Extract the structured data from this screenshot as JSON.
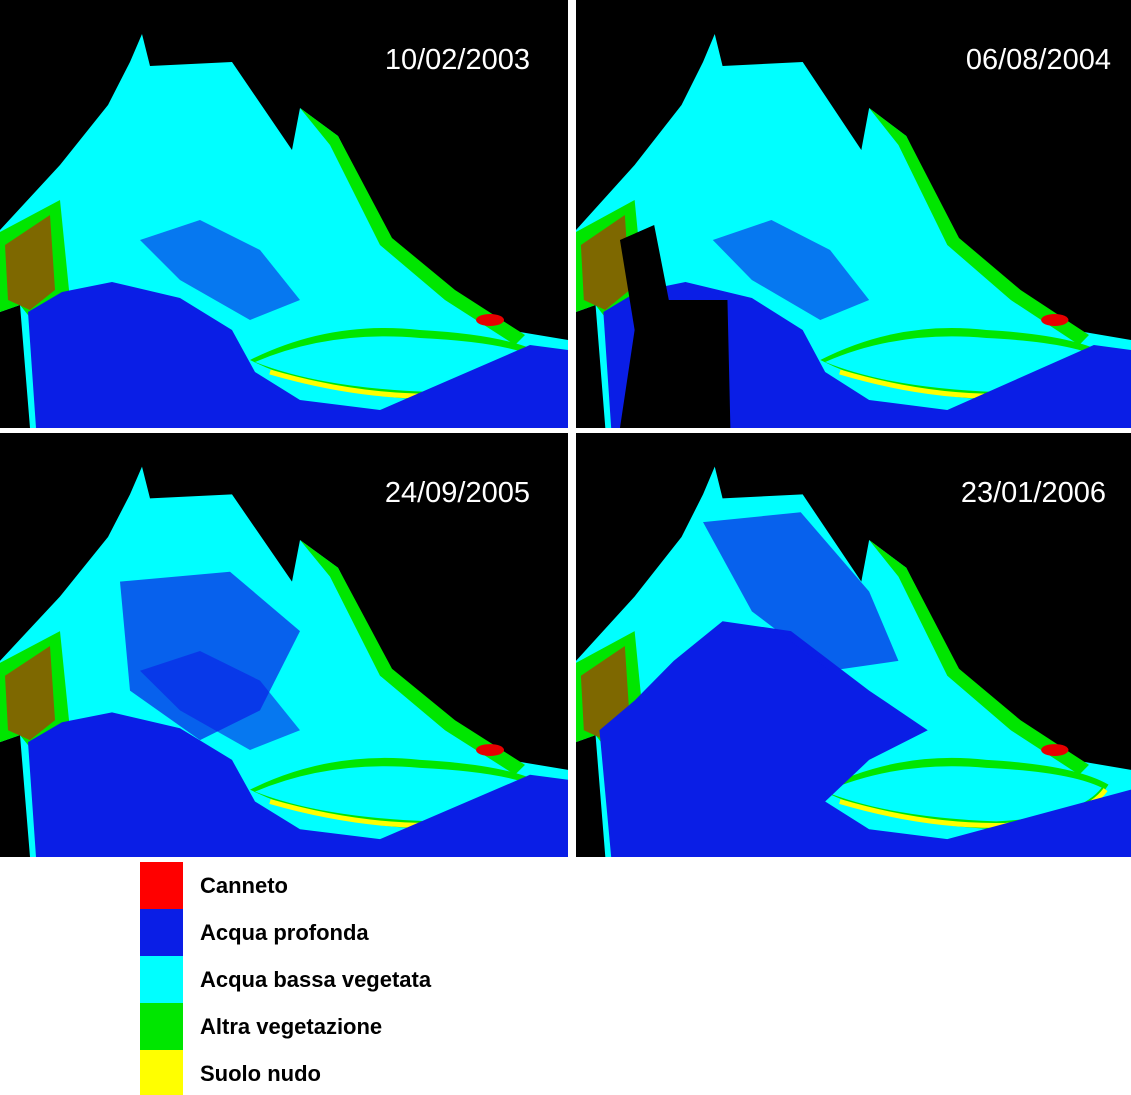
{
  "panels": [
    {
      "date": "10/02/2003"
    },
    {
      "date": "06/08/2004"
    },
    {
      "date": "24/09/2005"
    },
    {
      "date": "23/01/2006"
    }
  ],
  "legend": [
    {
      "label": "Canneto",
      "color": "#ff0000"
    },
    {
      "label": "Acqua profonda",
      "color": "#0a1ee6"
    },
    {
      "label": "Acqua bassa vegetata",
      "color": "#00ffff"
    },
    {
      "label": "Altra vegetazione",
      "color": "#00e600"
    },
    {
      "label": "Suolo nudo",
      "color": "#ffff00"
    }
  ]
}
